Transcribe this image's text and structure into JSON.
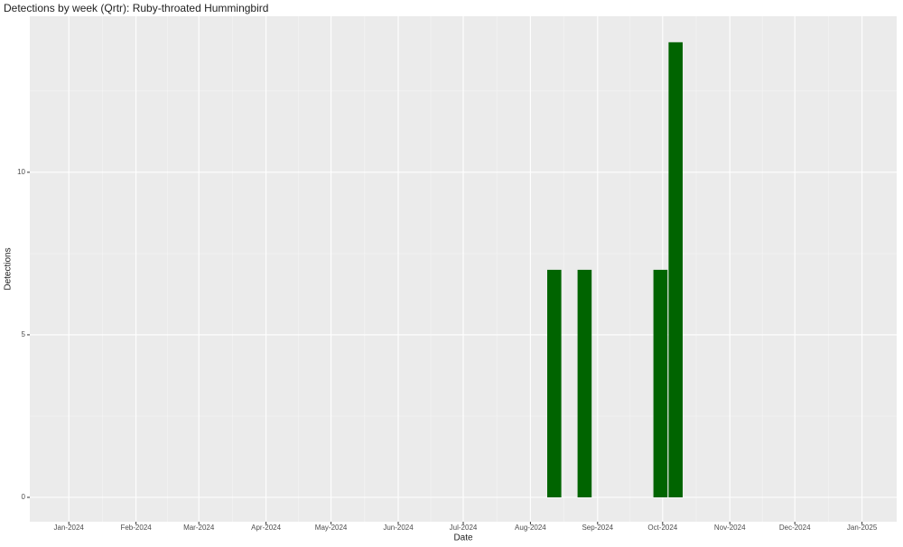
{
  "chart_data": {
    "type": "bar",
    "title": "Detections by week (Qrtr): Ruby-throated Hummingbird",
    "x_label": "Date",
    "y_label": "Detections",
    "x": [
      "2024-08-12",
      "2024-08-26",
      "2024-09-30",
      "2024-10-07"
    ],
    "values": [
      7,
      7,
      7,
      14
    ],
    "color": "#006400",
    "xlim": [
      "2023-12-14",
      "2025-01-17"
    ],
    "xticks": [
      {
        "value": "2024-01-01",
        "label": "Jan-2024"
      },
      {
        "value": "2024-02-01",
        "label": "Feb-2024"
      },
      {
        "value": "2024-03-01",
        "label": "Mar-2024"
      },
      {
        "value": "2024-04-01",
        "label": "Apr-2024"
      },
      {
        "value": "2024-05-01",
        "label": "May-2024"
      },
      {
        "value": "2024-06-01",
        "label": "Jun-2024"
      },
      {
        "value": "2024-07-01",
        "label": "Jul-2024"
      },
      {
        "value": "2024-08-01",
        "label": "Aug-2024"
      },
      {
        "value": "2024-09-01",
        "label": "Sep-2024"
      },
      {
        "value": "2024-10-01",
        "label": "Oct-2024"
      },
      {
        "value": "2024-11-01",
        "label": "Nov-2024"
      },
      {
        "value": "2024-12-01",
        "label": "Dec-2024"
      },
      {
        "value": "2025-01-01",
        "label": "Jan-2025"
      }
    ],
    "ylim": [
      -0.75,
      14.8
    ],
    "yticks": [
      0,
      5,
      10
    ],
    "grid": true
  }
}
